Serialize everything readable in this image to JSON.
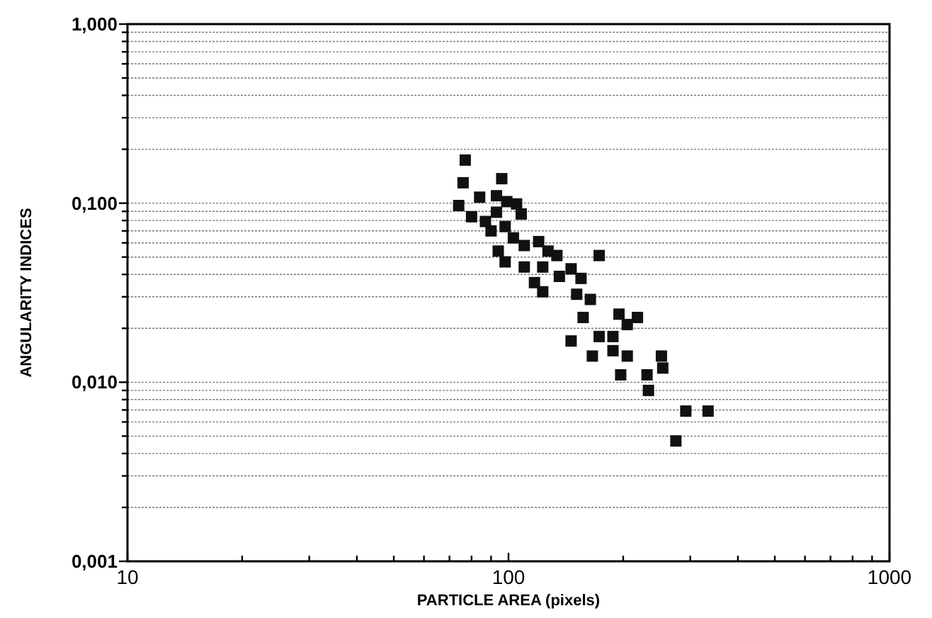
{
  "chart_data": {
    "type": "scatter",
    "xlabel": "PARTICLE AREA (pixels)",
    "ylabel": "ANGULARITY INDICES",
    "log": "xy",
    "grid": "y",
    "marker": "square",
    "xlim": [
      10,
      1000
    ],
    "ylim": [
      0.001,
      1
    ],
    "xticks": [
      10,
      {
        "value": 20,
        "label": null
      },
      {
        "value": 30,
        "label": null
      },
      {
        "value": 40,
        "label": null
      },
      {
        "value": 50,
        "label": null
      },
      {
        "value": 60,
        "label": null
      },
      {
        "value": 70,
        "label": null
      },
      {
        "value": 80,
        "label": null
      },
      {
        "value": 90,
        "label": null
      },
      100,
      {
        "value": 200,
        "label": null
      },
      {
        "value": 300,
        "label": null
      },
      {
        "value": 400,
        "label": null
      },
      {
        "value": 500,
        "label": null
      },
      {
        "value": 600,
        "label": null
      },
      {
        "value": 700,
        "label": null
      },
      {
        "value": 800,
        "label": null
      },
      {
        "value": 900,
        "label": null
      },
      1000
    ],
    "yticks": [
      {
        "value": 0.001,
        "label": "0,001"
      },
      {
        "value": 0.002,
        "label": null
      },
      {
        "value": 0.003,
        "label": null
      },
      {
        "value": 0.004,
        "label": null
      },
      {
        "value": 0.005,
        "label": null
      },
      {
        "value": 0.006,
        "label": null
      },
      {
        "value": 0.007,
        "label": null
      },
      {
        "value": 0.008,
        "label": null
      },
      {
        "value": 0.009,
        "label": null
      },
      {
        "value": 0.01,
        "label": "0,010"
      },
      {
        "value": 0.02,
        "label": null
      },
      {
        "value": 0.03,
        "label": null
      },
      {
        "value": 0.04,
        "label": null
      },
      {
        "value": 0.05,
        "label": null
      },
      {
        "value": 0.06,
        "label": null
      },
      {
        "value": 0.07,
        "label": null
      },
      {
        "value": 0.08,
        "label": null
      },
      {
        "value": 0.09,
        "label": null
      },
      {
        "value": 0.1,
        "label": "0,100"
      },
      {
        "value": 0.2,
        "label": null
      },
      {
        "value": 0.3,
        "label": null
      },
      {
        "value": 0.4,
        "label": null
      },
      {
        "value": 0.5,
        "label": null
      },
      {
        "value": 0.6,
        "label": null
      },
      {
        "value": 0.7,
        "label": null
      },
      {
        "value": 0.8,
        "label": null
      },
      {
        "value": 0.9,
        "label": null
      },
      {
        "value": 1,
        "label": "1,000"
      }
    ],
    "series": [
      {
        "color": "#111111",
        "x": [
          77,
          76,
          96,
          74,
          84,
          93,
          99,
          105,
          108,
          93,
          80,
          87,
          90,
          98,
          103,
          110,
          120,
          94,
          98,
          110,
          127,
          134,
          123,
          136,
          146,
          155,
          117,
          123,
          173,
          151,
          164,
          157,
          195,
          218,
          205,
          173,
          146,
          188,
          166,
          188,
          205,
          197,
          252,
          254,
          231,
          233,
          292,
          334,
          275
        ],
        "values": [
          0.174,
          0.13,
          0.137,
          0.097,
          0.108,
          0.11,
          0.102,
          0.099,
          0.087,
          0.089,
          0.084,
          0.079,
          0.07,
          0.074,
          0.064,
          0.058,
          0.061,
          0.054,
          0.047,
          0.044,
          0.054,
          0.051,
          0.044,
          0.039,
          0.043,
          0.038,
          0.036,
          0.032,
          0.051,
          0.031,
          0.029,
          0.023,
          0.024,
          0.023,
          0.021,
          0.018,
          0.017,
          0.018,
          0.014,
          0.015,
          0.014,
          0.011,
          0.014,
          0.012,
          0.011,
          0.009,
          0.0069,
          0.0069,
          0.0047
        ]
      }
    ]
  }
}
